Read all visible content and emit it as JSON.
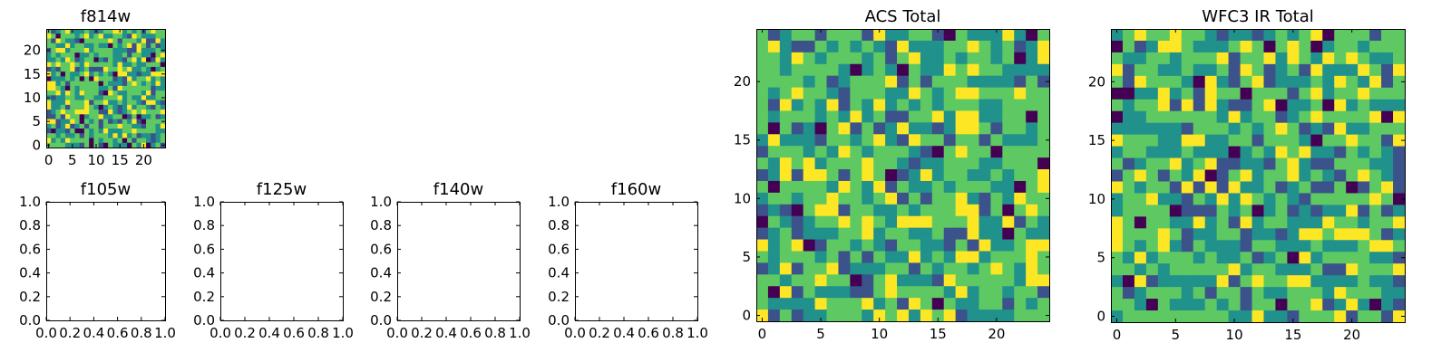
{
  "colormap": [
    "#440154",
    "#3b528b",
    "#21918c",
    "#5ec962",
    "#fde725"
  ],
  "chart_data": [
    {
      "type": "heatmap",
      "title": "f814w",
      "grid_size": 25,
      "xticks": [
        "0",
        "5",
        "10",
        "15",
        "20"
      ],
      "yticks": [
        "0",
        "5",
        "10",
        "15",
        "20"
      ],
      "seed": 814,
      "levels": "pixel values read as a viridis-colored 25x25 noise field"
    },
    {
      "type": "empty",
      "title": "f105w",
      "xticks": [
        "0.0",
        "0.2",
        "0.4",
        "0.6",
        "0.8",
        "1.0"
      ],
      "yticks": [
        "0.0",
        "0.2",
        "0.4",
        "0.6",
        "0.8",
        "1.0"
      ]
    },
    {
      "type": "empty",
      "title": "f125w",
      "xticks": [
        "0.0",
        "0.2",
        "0.4",
        "0.6",
        "0.8",
        "1.0"
      ],
      "yticks": [
        "0.0",
        "0.2",
        "0.4",
        "0.6",
        "0.8",
        "1.0"
      ]
    },
    {
      "type": "empty",
      "title": "f140w",
      "xticks": [
        "0.0",
        "0.2",
        "0.4",
        "0.6",
        "0.8",
        "1.0"
      ],
      "yticks": [
        "0.0",
        "0.2",
        "0.4",
        "0.6",
        "0.8",
        "1.0"
      ]
    },
    {
      "type": "empty",
      "title": "f160w",
      "xticks": [
        "0.0",
        "0.2",
        "0.4",
        "0.6",
        "0.8",
        "1.0"
      ],
      "yticks": [
        "0.0",
        "0.2",
        "0.4",
        "0.6",
        "0.8",
        "1.0"
      ]
    },
    {
      "type": "heatmap",
      "title": "ACS Total",
      "grid_size": 25,
      "xticks": [
        "0",
        "5",
        "10",
        "15",
        "20"
      ],
      "yticks": [
        "0",
        "5",
        "10",
        "15",
        "20"
      ],
      "seed": 1001
    },
    {
      "type": "heatmap",
      "title": "WFC3 IR Total",
      "grid_size": 25,
      "xticks": [
        "0",
        "5",
        "10",
        "15",
        "20"
      ],
      "yticks": [
        "0",
        "5",
        "10",
        "15",
        "20"
      ],
      "seed": 3003
    }
  ]
}
